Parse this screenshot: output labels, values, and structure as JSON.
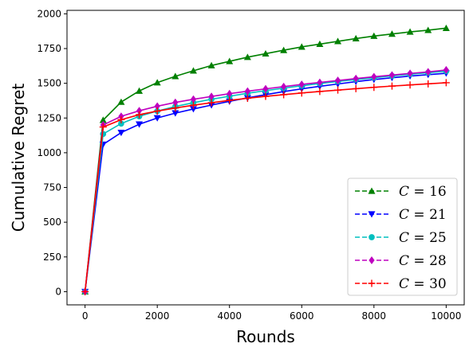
{
  "chart_data": {
    "type": "line",
    "title": "",
    "xlabel": "Rounds",
    "ylabel": "Cumulative Regret",
    "xlim": [
      -500,
      10500
    ],
    "ylim": [
      -95,
      2025
    ],
    "x_ticks": [
      0,
      2000,
      4000,
      6000,
      8000,
      10000
    ],
    "y_ticks": [
      0,
      250,
      500,
      750,
      1000,
      1250,
      1500,
      1750,
      2000
    ],
    "grid": false,
    "legend_position": "lower-right",
    "x": [
      0,
      500,
      1000,
      1500,
      2000,
      2500,
      3000,
      3500,
      4000,
      4500,
      5000,
      5500,
      6000,
      6500,
      7000,
      7500,
      8000,
      8500,
      9000,
      9500,
      10000
    ],
    "series": [
      {
        "name": "C = 16",
        "color": "#008000",
        "marker": "triangle-up",
        "values": [
          0,
          1235,
          1365,
          1445,
          1505,
          1550,
          1590,
          1628,
          1658,
          1688,
          1713,
          1738,
          1762,
          1782,
          1802,
          1822,
          1840,
          1855,
          1870,
          1882,
          1897
        ]
      },
      {
        "name": "C = 21",
        "color": "#0000ff",
        "marker": "triangle-down",
        "values": [
          0,
          1060,
          1145,
          1205,
          1250,
          1285,
          1315,
          1343,
          1370,
          1395,
          1418,
          1440,
          1460,
          1478,
          1495,
          1512,
          1527,
          1540,
          1552,
          1562,
          1572
        ]
      },
      {
        "name": "C = 25",
        "color": "#00bfbf",
        "marker": "circle",
        "values": [
          0,
          1135,
          1210,
          1262,
          1300,
          1333,
          1360,
          1385,
          1407,
          1428,
          1447,
          1465,
          1482,
          1498,
          1513,
          1527,
          1540,
          1553,
          1565,
          1576,
          1587
        ]
      },
      {
        "name": "C = 28",
        "color": "#bf00bf",
        "marker": "diamond",
        "values": [
          0,
          1200,
          1262,
          1302,
          1335,
          1362,
          1385,
          1405,
          1425,
          1443,
          1460,
          1476,
          1492,
          1506,
          1520,
          1534,
          1547,
          1559,
          1571,
          1582,
          1596
        ]
      },
      {
        "name": "C = 30",
        "color": "#ff0000",
        "marker": "plus",
        "values": [
          0,
          1185,
          1238,
          1274,
          1300,
          1322,
          1342,
          1360,
          1377,
          1392,
          1406,
          1418,
          1430,
          1441,
          1451,
          1461,
          1471,
          1480,
          1488,
          1496,
          1504
        ]
      }
    ]
  }
}
